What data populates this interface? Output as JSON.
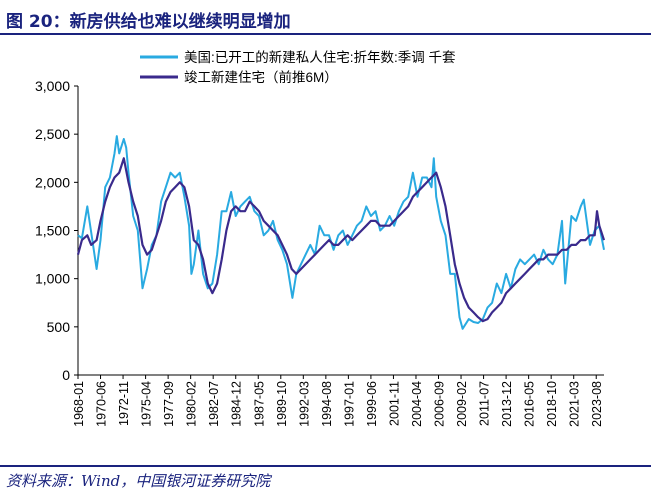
{
  "figure": {
    "title": "图 20：新房供给也难以继续明显增加",
    "source": "资料来源：Wind，中国银河证券研究院"
  },
  "colors": {
    "title": "#1a237e",
    "series_starts": "#29aae1",
    "series_completions": "#3a2a8c"
  },
  "chart_data": {
    "type": "line",
    "legend_position": "top",
    "grid": false,
    "ylim": [
      0,
      3000
    ],
    "yticks": [
      0,
      500,
      1000,
      1500,
      2000,
      2500,
      3000
    ],
    "ytick_labels": [
      "0",
      "500",
      "1,000",
      "1,500",
      "2,000",
      "2,500",
      "3,000"
    ],
    "xlim": [
      "1968-01",
      "2024-06"
    ],
    "xticks": [
      "1968-01",
      "1970-06",
      "1972-11",
      "1975-04",
      "1977-09",
      "1980-02",
      "1982-07",
      "1984-12",
      "1987-05",
      "1989-10",
      "1992-03",
      "1994-08",
      "1997-01",
      "1999-06",
      "2001-11",
      "2004-04",
      "2006-09",
      "2009-02",
      "2011-07",
      "2013-12",
      "2016-05",
      "2018-10",
      "2021-03",
      "2023-08"
    ],
    "series": [
      {
        "name": "美国:已开工的新建私人住宅:折年数:季调 千套",
        "color": "#29aae1",
        "points": [
          [
            "1968-01",
            1450
          ],
          [
            "1968-06",
            1420
          ],
          [
            "1969-01",
            1750
          ],
          [
            "1969-06",
            1480
          ],
          [
            "1970-01",
            1100
          ],
          [
            "1970-06",
            1400
          ],
          [
            "1970-12",
            1950
          ],
          [
            "1971-06",
            2050
          ],
          [
            "1971-12",
            2300
          ],
          [
            "1972-03",
            2480
          ],
          [
            "1972-06",
            2300
          ],
          [
            "1972-12",
            2450
          ],
          [
            "1973-03",
            2360
          ],
          [
            "1973-06",
            2100
          ],
          [
            "1973-12",
            1650
          ],
          [
            "1974-06",
            1500
          ],
          [
            "1974-12",
            900
          ],
          [
            "1975-06",
            1100
          ],
          [
            "1975-12",
            1350
          ],
          [
            "1976-06",
            1450
          ],
          [
            "1976-12",
            1800
          ],
          [
            "1977-06",
            1950
          ],
          [
            "1977-12",
            2100
          ],
          [
            "1978-06",
            2050
          ],
          [
            "1978-12",
            2100
          ],
          [
            "1979-06",
            1850
          ],
          [
            "1979-12",
            1550
          ],
          [
            "1980-03",
            1050
          ],
          [
            "1980-06",
            1150
          ],
          [
            "1980-12",
            1500
          ],
          [
            "1981-06",
            1050
          ],
          [
            "1981-12",
            900
          ],
          [
            "1982-06",
            950
          ],
          [
            "1982-12",
            1250
          ],
          [
            "1983-06",
            1700
          ],
          [
            "1983-12",
            1700
          ],
          [
            "1984-06",
            1900
          ],
          [
            "1984-12",
            1650
          ],
          [
            "1985-06",
            1750
          ],
          [
            "1985-12",
            1800
          ],
          [
            "1986-06",
            1850
          ],
          [
            "1986-12",
            1700
          ],
          [
            "1987-06",
            1650
          ],
          [
            "1987-12",
            1450
          ],
          [
            "1988-06",
            1500
          ],
          [
            "1988-12",
            1600
          ],
          [
            "1989-06",
            1400
          ],
          [
            "1989-12",
            1300
          ],
          [
            "1990-06",
            1150
          ],
          [
            "1991-01",
            800
          ],
          [
            "1991-06",
            1050
          ],
          [
            "1991-12",
            1150
          ],
          [
            "1992-06",
            1250
          ],
          [
            "1992-12",
            1350
          ],
          [
            "1993-06",
            1250
          ],
          [
            "1993-12",
            1550
          ],
          [
            "1994-06",
            1450
          ],
          [
            "1994-12",
            1450
          ],
          [
            "1995-06",
            1300
          ],
          [
            "1995-12",
            1450
          ],
          [
            "1996-06",
            1500
          ],
          [
            "1996-12",
            1350
          ],
          [
            "1997-06",
            1450
          ],
          [
            "1997-12",
            1550
          ],
          [
            "1998-06",
            1600
          ],
          [
            "1998-12",
            1750
          ],
          [
            "1999-06",
            1650
          ],
          [
            "1999-12",
            1700
          ],
          [
            "2000-06",
            1500
          ],
          [
            "2000-12",
            1550
          ],
          [
            "2001-06",
            1650
          ],
          [
            "2001-12",
            1550
          ],
          [
            "2002-06",
            1700
          ],
          [
            "2002-12",
            1800
          ],
          [
            "2003-06",
            1850
          ],
          [
            "2003-12",
            2100
          ],
          [
            "2004-06",
            1850
          ],
          [
            "2004-12",
            2050
          ],
          [
            "2005-06",
            2050
          ],
          [
            "2005-12",
            1950
          ],
          [
            "2006-03",
            2250
          ],
          [
            "2006-06",
            1850
          ],
          [
            "2006-12",
            1600
          ],
          [
            "2007-06",
            1450
          ],
          [
            "2007-12",
            1050
          ],
          [
            "2008-06",
            1050
          ],
          [
            "2008-12",
            600
          ],
          [
            "2009-04",
            480
          ],
          [
            "2009-12",
            580
          ],
          [
            "2010-06",
            550
          ],
          [
            "2010-12",
            540
          ],
          [
            "2011-06",
            580
          ],
          [
            "2011-12",
            700
          ],
          [
            "2012-06",
            750
          ],
          [
            "2012-12",
            950
          ],
          [
            "2013-06",
            850
          ],
          [
            "2013-12",
            1050
          ],
          [
            "2014-06",
            900
          ],
          [
            "2014-12",
            1100
          ],
          [
            "2015-06",
            1200
          ],
          [
            "2015-12",
            1150
          ],
          [
            "2016-06",
            1200
          ],
          [
            "2016-12",
            1250
          ],
          [
            "2017-06",
            1150
          ],
          [
            "2017-12",
            1300
          ],
          [
            "2018-06",
            1200
          ],
          [
            "2018-12",
            1150
          ],
          [
            "2019-06",
            1250
          ],
          [
            "2019-12",
            1600
          ],
          [
            "2020-04",
            950
          ],
          [
            "2020-12",
            1650
          ],
          [
            "2021-06",
            1600
          ],
          [
            "2021-12",
            1750
          ],
          [
            "2022-04",
            1820
          ],
          [
            "2022-12",
            1350
          ],
          [
            "2023-06",
            1500
          ],
          [
            "2023-12",
            1550
          ],
          [
            "2024-06",
            1300
          ]
        ]
      },
      {
        "name": "竣工新建住宅（前推6M）",
        "color": "#3a2a8c",
        "points": [
          [
            "1968-01",
            1250
          ],
          [
            "1968-06",
            1400
          ],
          [
            "1969-01",
            1450
          ],
          [
            "1969-06",
            1350
          ],
          [
            "1970-01",
            1400
          ],
          [
            "1970-06",
            1600
          ],
          [
            "1970-12",
            1800
          ],
          [
            "1971-06",
            1950
          ],
          [
            "1971-12",
            2050
          ],
          [
            "1972-06",
            2100
          ],
          [
            "1972-12",
            2250
          ],
          [
            "1973-06",
            2000
          ],
          [
            "1973-12",
            1800
          ],
          [
            "1974-06",
            1650
          ],
          [
            "1974-12",
            1350
          ],
          [
            "1975-06",
            1250
          ],
          [
            "1975-12",
            1300
          ],
          [
            "1976-06",
            1450
          ],
          [
            "1976-12",
            1600
          ],
          [
            "1977-06",
            1800
          ],
          [
            "1977-12",
            1900
          ],
          [
            "1978-06",
            1950
          ],
          [
            "1978-12",
            2000
          ],
          [
            "1979-06",
            1950
          ],
          [
            "1979-12",
            1750
          ],
          [
            "1980-06",
            1400
          ],
          [
            "1980-12",
            1350
          ],
          [
            "1981-06",
            1200
          ],
          [
            "1981-12",
            950
          ],
          [
            "1982-06",
            850
          ],
          [
            "1982-12",
            950
          ],
          [
            "1983-06",
            1200
          ],
          [
            "1983-12",
            1500
          ],
          [
            "1984-06",
            1700
          ],
          [
            "1984-12",
            1750
          ],
          [
            "1985-06",
            1700
          ],
          [
            "1985-12",
            1700
          ],
          [
            "1986-06",
            1800
          ],
          [
            "1986-12",
            1750
          ],
          [
            "1987-06",
            1700
          ],
          [
            "1987-12",
            1600
          ],
          [
            "1988-06",
            1550
          ],
          [
            "1988-12",
            1500
          ],
          [
            "1989-06",
            1450
          ],
          [
            "1989-12",
            1350
          ],
          [
            "1990-06",
            1250
          ],
          [
            "1990-12",
            1100
          ],
          [
            "1991-06",
            1050
          ],
          [
            "1991-12",
            1100
          ],
          [
            "1992-06",
            1150
          ],
          [
            "1992-12",
            1200
          ],
          [
            "1993-06",
            1250
          ],
          [
            "1993-12",
            1300
          ],
          [
            "1994-06",
            1350
          ],
          [
            "1994-12",
            1400
          ],
          [
            "1995-06",
            1350
          ],
          [
            "1995-12",
            1350
          ],
          [
            "1996-06",
            1400
          ],
          [
            "1996-12",
            1450
          ],
          [
            "1997-06",
            1400
          ],
          [
            "1997-12",
            1450
          ],
          [
            "1998-06",
            1500
          ],
          [
            "1998-12",
            1550
          ],
          [
            "1999-06",
            1600
          ],
          [
            "1999-12",
            1600
          ],
          [
            "2000-06",
            1550
          ],
          [
            "2000-12",
            1550
          ],
          [
            "2001-06",
            1550
          ],
          [
            "2001-12",
            1600
          ],
          [
            "2002-06",
            1650
          ],
          [
            "2002-12",
            1700
          ],
          [
            "2003-06",
            1750
          ],
          [
            "2003-12",
            1850
          ],
          [
            "2004-06",
            1900
          ],
          [
            "2004-12",
            1950
          ],
          [
            "2005-06",
            2000
          ],
          [
            "2005-12",
            2050
          ],
          [
            "2006-06",
            2100
          ],
          [
            "2006-12",
            1950
          ],
          [
            "2007-06",
            1750
          ],
          [
            "2007-12",
            1450
          ],
          [
            "2008-06",
            1150
          ],
          [
            "2008-12",
            950
          ],
          [
            "2009-06",
            800
          ],
          [
            "2009-12",
            700
          ],
          [
            "2010-06",
            650
          ],
          [
            "2010-12",
            600
          ],
          [
            "2011-06",
            560
          ],
          [
            "2011-12",
            580
          ],
          [
            "2012-06",
            650
          ],
          [
            "2012-12",
            700
          ],
          [
            "2013-06",
            750
          ],
          [
            "2013-12",
            850
          ],
          [
            "2014-06",
            900
          ],
          [
            "2014-12",
            950
          ],
          [
            "2015-06",
            1000
          ],
          [
            "2015-12",
            1050
          ],
          [
            "2016-06",
            1100
          ],
          [
            "2016-12",
            1150
          ],
          [
            "2017-06",
            1200
          ],
          [
            "2017-12",
            1200
          ],
          [
            "2018-06",
            1250
          ],
          [
            "2018-12",
            1250
          ],
          [
            "2019-06",
            1250
          ],
          [
            "2019-12",
            1300
          ],
          [
            "2020-06",
            1300
          ],
          [
            "2020-12",
            1350
          ],
          [
            "2021-06",
            1350
          ],
          [
            "2021-12",
            1400
          ],
          [
            "2022-06",
            1400
          ],
          [
            "2022-12",
            1450
          ],
          [
            "2023-06",
            1450
          ],
          [
            "2023-09",
            1700
          ],
          [
            "2023-12",
            1550
          ],
          [
            "2024-06",
            1400
          ]
        ]
      }
    ]
  }
}
